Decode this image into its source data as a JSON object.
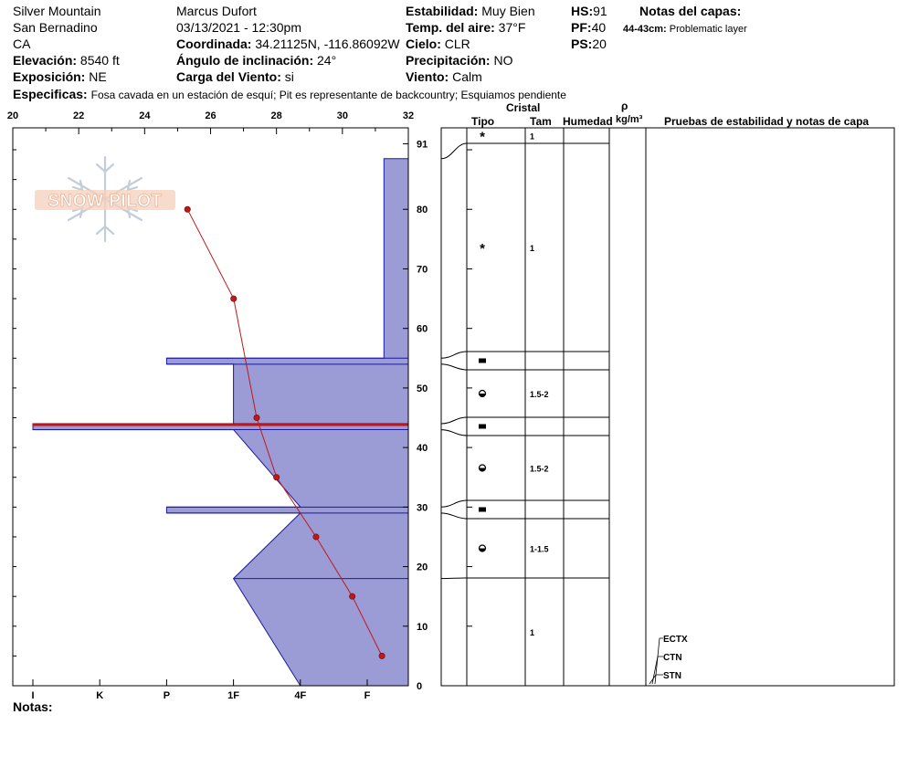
{
  "header": {
    "location": "Silver Mountain",
    "range": "San Bernadino",
    "state": "CA",
    "elevation_label": "Elevación:",
    "elevation_value": "8540 ft",
    "aspect_label": "Exposición:",
    "aspect_value": "NE",
    "observer": "Marcus Dufort",
    "datetime": "03/13/2021 - 12:30pm",
    "coord_label": "Coordinada:",
    "coord_value": "34.21125N, -116.86092W",
    "slope_label": "Ángulo de inclinación:",
    "slope_value": "24°",
    "wind_load_label": "Carga del Viento:",
    "wind_load_value": "si",
    "stability_label": "Estabilidad:",
    "stability_value": "Muy Bien",
    "air_temp_label": "Temp. del aire:",
    "air_temp_value": "37°F",
    "sky_label": "Cielo:",
    "sky_value": "CLR",
    "precip_label": "Precipitación:",
    "precip_value": "NO",
    "wind_label": "Viento:",
    "wind_value": "Calm",
    "hs_label": "HS:",
    "hs_value": "91",
    "pf_label": "PF:",
    "pf_value": "40",
    "ps_label": "PS:",
    "ps_value": "20",
    "layer_notes_label": "Notas del capas:",
    "layer_note_depth": "44-43cm:",
    "layer_note_text": "Problematic layer",
    "specifics_label": "Especificas:",
    "specifics_text": "Fosa cavada en un estación de esquí; Pit es representante de backcountry; Esquiamos pendiente",
    "notes_label": "Notas:",
    "logo_text": "SNOW PILOT"
  },
  "columns": {
    "crystal": "Cristal",
    "type": "Tipo",
    "size": "Tam",
    "moisture": "Humedad",
    "rho": "ρ",
    "density_unit": "kg/m³",
    "tests": "Pruebas de estabilidad y notas de capa"
  },
  "colors": {
    "hardness_fill": "#9b9bd6",
    "hardness_stroke": "#1a1a9c",
    "temp_line": "#c01818",
    "problem_layer": "#c01818"
  },
  "chart_data": {
    "type": "line",
    "temp_axis": {
      "ticks": [
        "20",
        "22",
        "24",
        "26",
        "28",
        "30",
        "32"
      ],
      "range": [
        20,
        32
      ]
    },
    "hardness_axis": {
      "ticks": [
        "I",
        "K",
        "P",
        "1F",
        "4F",
        "F"
      ],
      "range": [
        0,
        6
      ]
    },
    "depth_axis": {
      "ticks": [
        "0",
        "10",
        "20",
        "30",
        "40",
        "50",
        "60",
        "70",
        "80",
        "91"
      ],
      "range": [
        0,
        91
      ]
    },
    "temperature_profile": [
      {
        "depth": 80,
        "temp": 25.3
      },
      {
        "depth": 65,
        "temp": 26.7
      },
      {
        "depth": 45,
        "temp": 27.4
      },
      {
        "depth": 35,
        "temp": 28.0
      },
      {
        "depth": 25,
        "temp": 29.2
      },
      {
        "depth": 15,
        "temp": 30.3
      },
      {
        "depth": 5,
        "temp": 31.2
      }
    ],
    "hardness_profile": [
      {
        "depth": 91,
        "hardness": 6
      },
      {
        "depth": 88.5,
        "hardness": 6
      },
      {
        "depth": 88.5,
        "hardness": 5.25
      },
      {
        "depth": 55,
        "hardness": 5.25
      },
      {
        "depth": 55,
        "hardness": 2
      },
      {
        "depth": 54,
        "hardness": 2
      },
      {
        "depth": 54,
        "hardness": 3
      },
      {
        "depth": 44,
        "hardness": 3
      },
      {
        "depth": 44,
        "hardness": 0
      },
      {
        "depth": 43,
        "hardness": 0
      },
      {
        "depth": 43,
        "hardness": 3
      },
      {
        "depth": 30,
        "hardness": 4
      },
      {
        "depth": 30,
        "hardness": 2
      },
      {
        "depth": 29,
        "hardness": 2
      },
      {
        "depth": 29,
        "hardness": 4
      },
      {
        "depth": 18,
        "hardness": 3
      },
      {
        "depth": 0,
        "hardness": 4
      },
      {
        "depth": 0,
        "hardness": 6
      }
    ],
    "hardness_boundaries": [
      55,
      54,
      44,
      43,
      30,
      29,
      18
    ],
    "problem_layer": {
      "top": 44,
      "bottom": 43
    },
    "layers": [
      {
        "top": 91,
        "bottom": 88.5,
        "grain": "new-snow",
        "size": "1"
      },
      {
        "top": 88.5,
        "bottom": 55,
        "grain": "new-snow",
        "size": "1"
      },
      {
        "top": 55,
        "bottom": 54,
        "grain": "melt-freeze-crust",
        "size": ""
      },
      {
        "top": 54,
        "bottom": 44,
        "grain": "rounding-faceted",
        "size": "1.5-2"
      },
      {
        "top": 44,
        "bottom": 43,
        "grain": "melt-freeze-crust",
        "size": ""
      },
      {
        "top": 43,
        "bottom": 30,
        "grain": "rounding-faceted",
        "size": "1.5-2"
      },
      {
        "top": 30,
        "bottom": 29,
        "grain": "melt-freeze-crust",
        "size": ""
      },
      {
        "top": 29,
        "bottom": 18,
        "grain": "rounding-faceted",
        "size": "1-1.5"
      },
      {
        "top": 18,
        "bottom": 0,
        "grain": "none",
        "size": "1"
      }
    ],
    "stability_tests": [
      {
        "name": "ECTX",
        "depth": 0
      },
      {
        "name": "CTN",
        "depth": 0
      },
      {
        "name": "STN",
        "depth": 0
      }
    ]
  }
}
